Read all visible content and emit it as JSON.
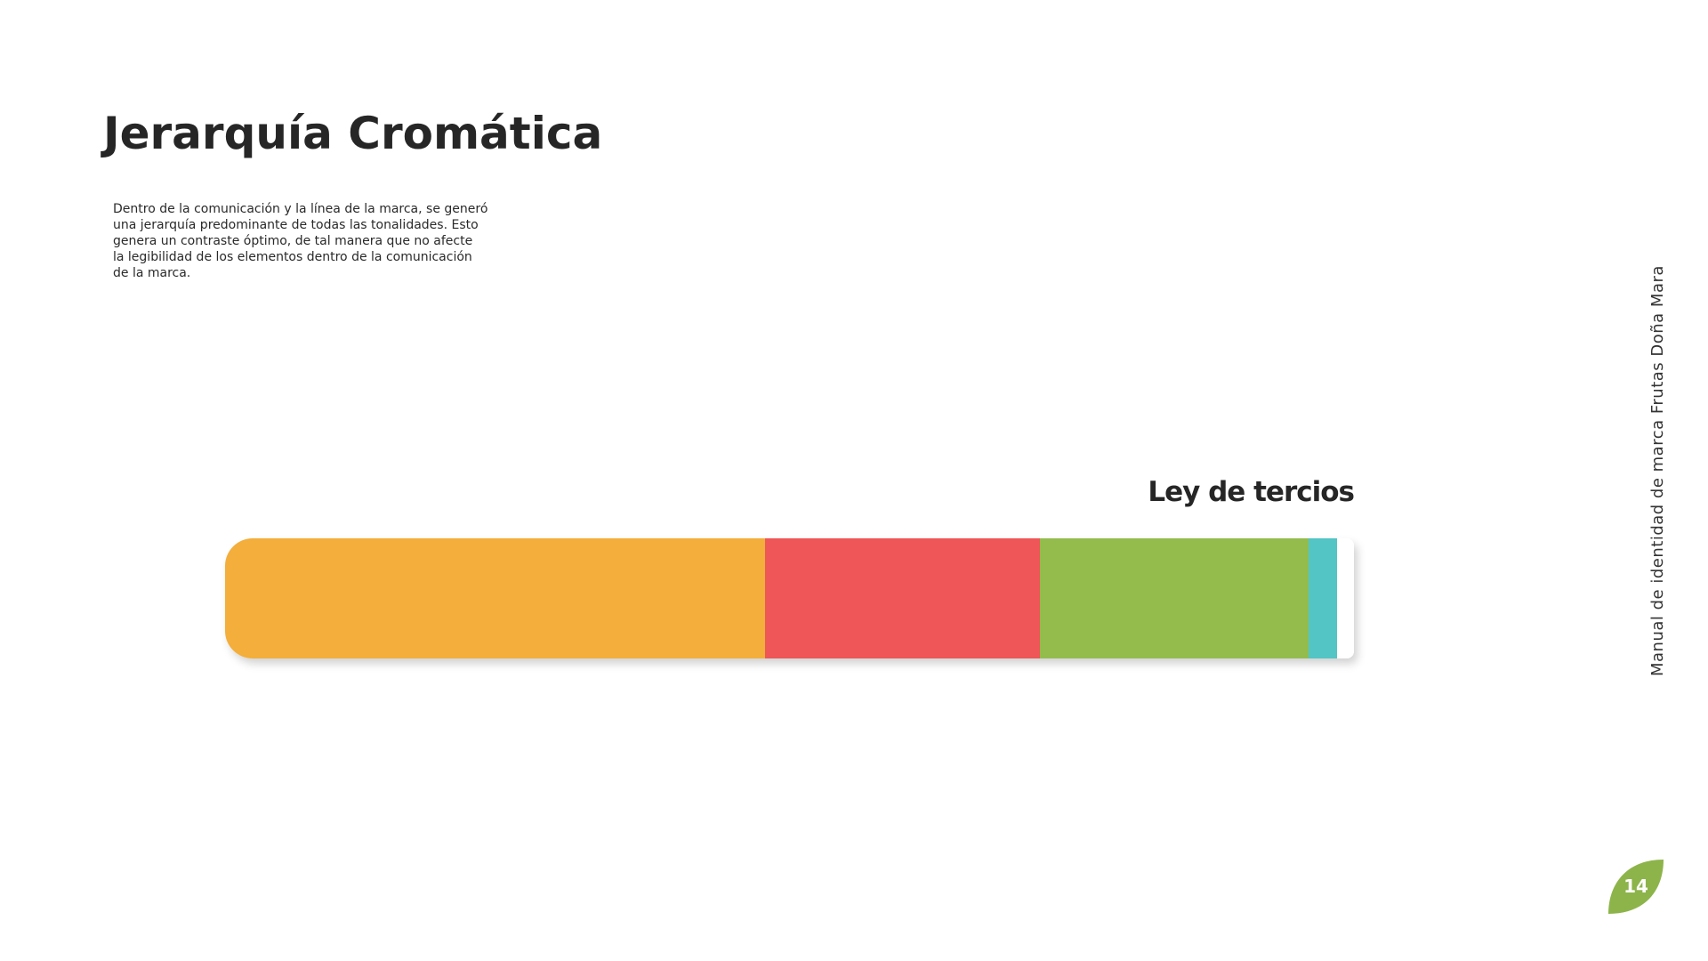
{
  "page": {
    "title": "Jerarquía Cromática",
    "paragraph_lines": [
      "Dentro de la comunicación y la línea de la marca, se generó",
      "una jerarquía predominante de todas las tonalidades. Esto",
      "genera un contraste óptimo, de tal manera que no afecte",
      "la legibilidad de los elementos dentro de la comunicación",
      "de la marca."
    ],
    "subtitle": "Ley de tercios",
    "side_text": "Manual de identidad de marca  Frutas Doña Mara",
    "page_number": "14"
  },
  "color_bar": {
    "segments": [
      {
        "color": "#F3AE3B",
        "share_percent": 47.8
      },
      {
        "color": "#EF5657",
        "share_percent": 24.4
      },
      {
        "color": "#93BC4D",
        "share_percent": 23.8
      },
      {
        "color": "#52C5C4",
        "share_percent": 2.5
      },
      {
        "color": "#FFFFFF",
        "share_percent": 1.5
      }
    ]
  },
  "colors": {
    "text": "#262626",
    "leaf": "#8DB44A"
  }
}
